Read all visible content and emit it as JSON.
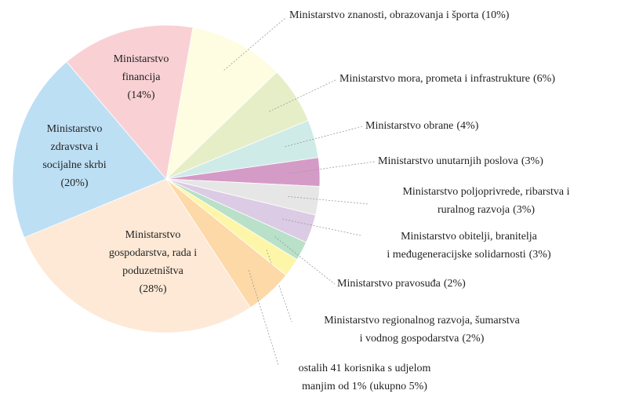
{
  "chart_data": {
    "type": "pie",
    "categories": [
      [
        "Ministarstvo znanosti, obrazovanja i športa"
      ],
      [
        "Ministarstvo mora, prometa i infrastrukture"
      ],
      [
        "Ministarstvo obrane"
      ],
      [
        "Ministarstvo unutarnjih poslova"
      ],
      [
        "Ministarstvo poljoprivrede, ribarstva i",
        "ruralnog razvoja"
      ],
      [
        "Ministarstvo obitelji, branitelja",
        "i međugeneracijske solidarnosti"
      ],
      [
        "Ministarstvo pravosuđa"
      ],
      [
        "Ministarstvo regionalnog razvoja, šumarstva",
        "i vodnog gospodarstva"
      ],
      [
        "ostalih 41 korisnika s udjelom",
        "manjim od 1%"
      ],
      [
        "Ministarstvo",
        "gospodarstva, rada i",
        "poduzetništva"
      ],
      [
        "Ministarstvo",
        "zdravstva i",
        "socijalne skrbi"
      ],
      [
        "Ministarstvo",
        "financija"
      ]
    ],
    "values": [
      10,
      6,
      4,
      3,
      3,
      3,
      2,
      2,
      5,
      28,
      20,
      14
    ],
    "value_labels": [
      "(10%)",
      "(6%)",
      "(4%)",
      "(3%)",
      "(3%)",
      "(3%)",
      "(2%)",
      "(2%)",
      "(ukupno 5%)",
      "(28%)",
      "(20%)",
      "(14%)"
    ],
    "colors": [
      "#fefde2",
      "#e6eec8",
      "#cfebe8",
      "#d59bc7",
      "#e6e6e6",
      "#dccbe4",
      "#b9e0c8",
      "#fdf6a8",
      "#fdd9a8",
      "#fde9d6",
      "#bddff4",
      "#f9d1d4"
    ]
  }
}
